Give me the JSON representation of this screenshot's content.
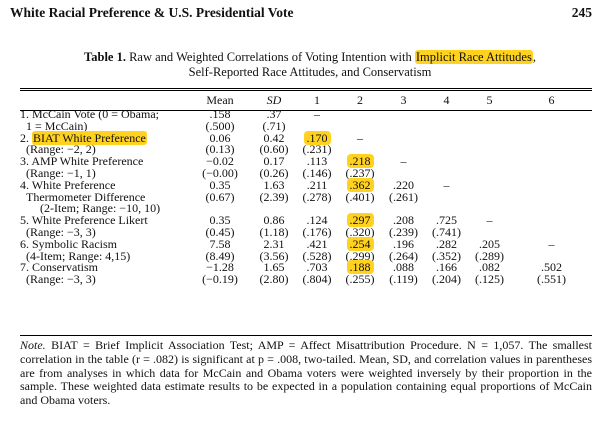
{
  "running_head": {
    "title": "White Racial Preference & U.S. Presidential Vote",
    "page_number": "245"
  },
  "caption": {
    "label": "Table 1.",
    "text_before": "Raw and Weighted Correlations of Voting Intention with",
    "highlighted": "Implicit Race Attitudes",
    "text_after": ",",
    "line2": "Self-Reported Race Attitudes, and Conservatism"
  },
  "table": {
    "headers": [
      "",
      "Mean",
      "SD",
      "1",
      "2",
      "3",
      "4",
      "5",
      "6"
    ],
    "rows": [
      {
        "var": "1. McCain Vote (0 = Obama;",
        "cells": [
          ".158",
          ".37",
          "–",
          "",
          "",
          "",
          "",
          ""
        ]
      },
      {
        "var": "1 = McCain)",
        "indent": true,
        "cells": [
          "(.500)",
          "(.71)",
          "",
          "",
          "",
          "",
          "",
          ""
        ]
      },
      {
        "var": "2.",
        "var_hl": "BIAT White Preference",
        "cells": [
          "0.06",
          "0.42",
          ".170",
          "–",
          "",
          "",
          "",
          ""
        ],
        "hl": [
          2
        ]
      },
      {
        "var": "(Range: −2, 2)",
        "indent": true,
        "cells": [
          "(0.13)",
          "(0.60)",
          "(.231)",
          "",
          "",
          "",
          "",
          ""
        ]
      },
      {
        "var": "3. AMP White Preference",
        "cells": [
          "−0.02",
          "0.17",
          ".113",
          ".218",
          "–",
          "",
          "",
          ""
        ],
        "hl": [
          3
        ]
      },
      {
        "var": "(Range: −1, 1)",
        "indent": true,
        "cells": [
          "(−0.00)",
          "(0.26)",
          "(.146)",
          "(.237)",
          "",
          "",
          "",
          ""
        ]
      },
      {
        "var": "4. White Preference",
        "cells": [
          "0.35",
          "1.63",
          ".211",
          ".362",
          ".220",
          "–",
          "",
          ""
        ],
        "hl": [
          3
        ]
      },
      {
        "var": "Thermometer Difference",
        "indent": true,
        "cells": [
          "(0.67)",
          "(2.39)",
          "(.278)",
          "(.401)",
          "(.261)",
          "",
          "",
          ""
        ]
      },
      {
        "var": "(2-Item; Range: −10, 10)",
        "indent2": true,
        "cells": [
          "",
          "",
          "",
          "",
          "",
          "",
          "",
          ""
        ]
      },
      {
        "var": "5. White Preference Likert",
        "cells": [
          "0.35",
          "0.86",
          ".124",
          ".297",
          ".208",
          ".725",
          "–",
          ""
        ],
        "hl": [
          3
        ]
      },
      {
        "var": "(Range: −3, 3)",
        "indent": true,
        "cells": [
          "(0.45)",
          "(1.18)",
          "(.176)",
          "(.320)",
          "(.239)",
          "(.741)",
          "",
          ""
        ]
      },
      {
        "var": "6. Symbolic Racism",
        "cells": [
          "7.58",
          "2.31",
          ".421",
          ".254",
          ".196",
          ".282",
          ".205",
          "–"
        ],
        "hl": [
          3
        ]
      },
      {
        "var": "(4-Item; Range: 4,15)",
        "indent": true,
        "cells": [
          "(8.49)",
          "(3.56)",
          "(.528)",
          "(.299)",
          "(.264)",
          "(.352)",
          "(.289)",
          ""
        ]
      },
      {
        "var": "7. Conservatism",
        "cells": [
          "−1.28",
          "1.65",
          ".703",
          ".188",
          ".088",
          ".166",
          ".082",
          ".502"
        ],
        "hl": [
          3
        ]
      },
      {
        "var": "(Range: −3, 3)",
        "indent": true,
        "cells": [
          "(−0.19)",
          "(2.80)",
          "(.804)",
          "(.255)",
          "(.119)",
          "(.204)",
          "(.125)",
          "(.551)"
        ]
      }
    ]
  },
  "note": {
    "label": "Note.",
    "text": "BIAT = Brief Implicit Association Test; AMP = Affect Misattribution Procedure. N = 1,057. The smallest correlation in the table (r = .082) is significant at p = .008, two-tailed. Mean, SD, and correlation values in parentheses are from analyses in which data for McCain and Obama voters were weighted inversely by their proportion in the sample. These weighted data estimate results to be expected in a population containing equal proportions of McCain and Obama voters."
  },
  "colors": {
    "highlight": "#ffd21f"
  }
}
